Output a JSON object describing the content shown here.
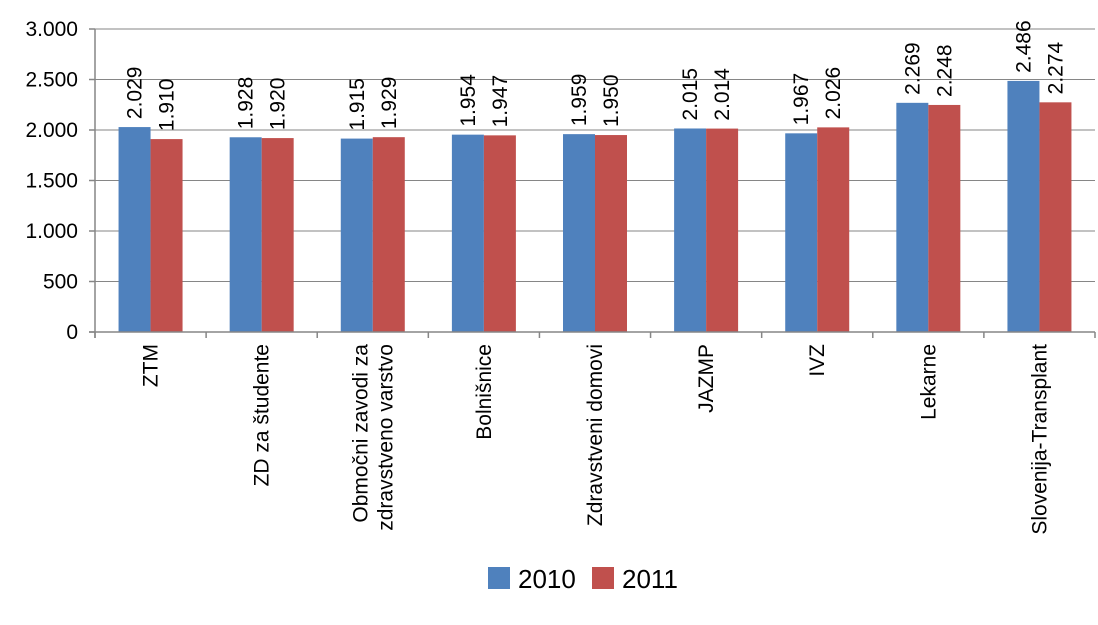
{
  "chart_data": {
    "type": "bar",
    "categories": [
      "ZTM",
      "ZD za študente",
      "Območni zavodi za zdravstveno varstvo",
      "Bolnišnice",
      "Zdravstveni domovi",
      "JAZMP",
      "IVZ",
      "Lekarne",
      "Slovenija-Transplant"
    ],
    "category_lines": [
      [
        "ZTM"
      ],
      [
        "ZD za študente"
      ],
      [
        "Območni zavodi za",
        "zdravstveno varstvo"
      ],
      [
        "Bolnišnice"
      ],
      [
        "Zdravstveni domovi"
      ],
      [
        "JAZMP"
      ],
      [
        "IVZ"
      ],
      [
        "Lekarne"
      ],
      [
        "Slovenija-Transplant"
      ]
    ],
    "series": [
      {
        "name": "2010",
        "color": "#4f81bd",
        "values": [
          2029,
          1928,
          1915,
          1954,
          1959,
          2015,
          1967,
          2269,
          2486
        ],
        "labels": [
          "2.029",
          "1.928",
          "1.915",
          "1.954",
          "1.959",
          "2.015",
          "1.967",
          "2.269",
          "2.486"
        ]
      },
      {
        "name": "2011",
        "color": "#c0504d",
        "values": [
          1910,
          1920,
          1929,
          1947,
          1950,
          2014,
          2026,
          2248,
          2274
        ],
        "labels": [
          "1.910",
          "1.920",
          "1.929",
          "1.947",
          "1.950",
          "2.014",
          "2.026",
          "2.248",
          "2.274"
        ]
      }
    ],
    "yticks": [
      0,
      500,
      1000,
      1500,
      2000,
      2500,
      3000
    ],
    "ytick_labels": [
      "0",
      "500",
      "1.000",
      "1.500",
      "2.000",
      "2.500",
      "3.000"
    ],
    "ylim": [
      0,
      3000
    ],
    "grid": true,
    "legend_position": "bottom",
    "title": "",
    "xlabel": "",
    "ylabel": ""
  }
}
